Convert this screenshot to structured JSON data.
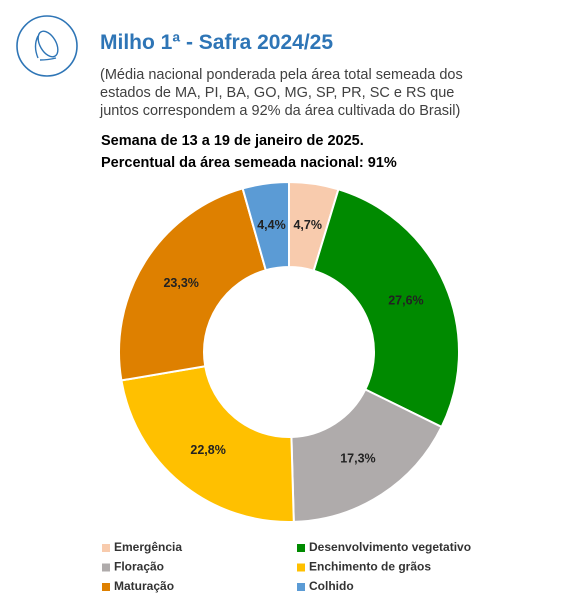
{
  "chart_data": {
    "type": "donut",
    "title": "Milho 1ª - Safra 2024/25",
    "subtitle": [
      "(Média nacional ponderada pela área total semeada dos",
      "estados de MA, PI, BA, GO, MG, SP, PR, SC e RS que",
      "juntos correspondem a 92% da área cultivada do Brasil)"
    ],
    "annotations": [
      "Semana de 13 a 19 de janeiro de 2025.",
      "Percentual da área semeada nacional: 91%"
    ],
    "categories": [
      "Emergência",
      "Desenvolvimento vegetativo",
      "Floração",
      "Enchimento de grãos",
      "Maturação",
      "Colhido"
    ],
    "values": [
      4.7,
      27.6,
      17.3,
      22.8,
      23.3,
      4.4
    ],
    "value_labels": [
      "4,7%",
      "27,6%",
      "17,3%",
      "22,8%",
      "23,3%",
      "4,4%"
    ],
    "colors": [
      "#f8cbad",
      "#008a00",
      "#afabab",
      "#ffc000",
      "#de8000",
      "#5b9bd5"
    ],
    "legend": "bottom"
  }
}
